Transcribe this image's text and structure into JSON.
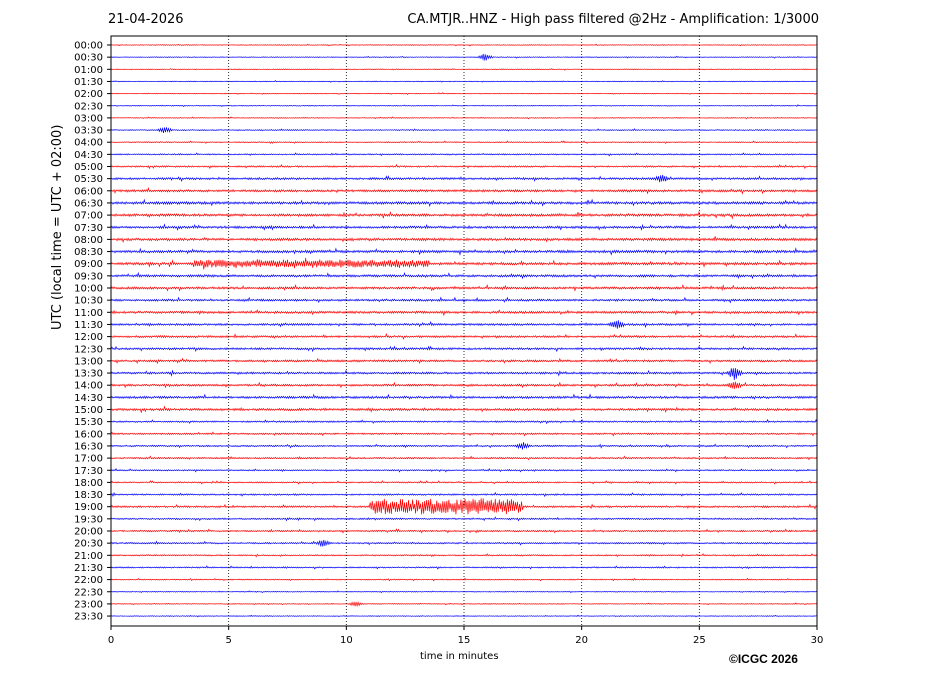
{
  "header": {
    "date": "21-04-2026",
    "title": "CA.MTJR..HNZ - High pass filtered @2Hz - Amplification: 1/3000"
  },
  "footer": {
    "copyright": "©ICGC 2026"
  },
  "chart_data": {
    "type": "line",
    "title": "CA.MTJR..HNZ - High pass filtered @2Hz - Amplification: 1/3000",
    "xlabel": "time in minutes",
    "ylabel": "UTC (local time = UTC + 02:00)",
    "xlim": [
      0,
      30
    ],
    "x_ticks": [
      0,
      5,
      10,
      15,
      20,
      25,
      30
    ],
    "x_gridlines": "dotted vertical at every 5 minutes",
    "trace_colors": [
      "#ff0000",
      "#0000ff"
    ],
    "row_labels": [
      "00:00",
      "00:30",
      "01:00",
      "01:30",
      "02:00",
      "02:30",
      "03:00",
      "03:30",
      "04:00",
      "04:30",
      "05:00",
      "05:30",
      "06:00",
      "06:30",
      "07:00",
      "07:30",
      "08:00",
      "08:30",
      "09:00",
      "09:30",
      "10:00",
      "10:30",
      "11:00",
      "11:30",
      "12:00",
      "12:30",
      "13:00",
      "13:30",
      "14:00",
      "14:30",
      "15:00",
      "15:30",
      "16:00",
      "16:30",
      "17:00",
      "17:30",
      "18:00",
      "18:30",
      "19:00",
      "19:30",
      "20:00",
      "20:30",
      "21:00",
      "21:30",
      "22:00",
      "22:30",
      "23:00",
      "23:30"
    ],
    "noise_level": [
      0.3,
      0.3,
      0.3,
      0.3,
      0.3,
      0.3,
      0.3,
      0.4,
      0.4,
      0.5,
      0.6,
      0.8,
      0.9,
      1.0,
      1.0,
      0.9,
      1.0,
      1.0,
      1.0,
      0.9,
      0.9,
      0.8,
      0.9,
      0.8,
      0.8,
      0.8,
      0.8,
      0.8,
      0.8,
      0.9,
      0.9,
      0.6,
      0.6,
      0.6,
      0.6,
      0.5,
      0.5,
      0.6,
      0.7,
      0.6,
      0.6,
      0.6,
      0.5,
      0.5,
      0.4,
      0.3,
      0.3,
      0.3
    ],
    "events": [
      {
        "row": 1,
        "minute": 15.9,
        "amplitude": 3
      },
      {
        "row": 7,
        "minute": 2.3,
        "amplitude": 3
      },
      {
        "row": 11,
        "minute": 23.4,
        "amplitude": 3
      },
      {
        "row": 18,
        "minute": 3.5,
        "minute_end": 13.5,
        "amplitude": 2.5
      },
      {
        "row": 23,
        "minute": 21.5,
        "amplitude": 4
      },
      {
        "row": 27,
        "minute": 26.5,
        "amplitude": 6
      },
      {
        "row": 28,
        "minute": 26.5,
        "amplitude": 4
      },
      {
        "row": 33,
        "minute": 17.5,
        "amplitude": 3
      },
      {
        "row": 38,
        "minute": 11.0,
        "minute_end": 17.5,
        "amplitude": 6
      },
      {
        "row": 41,
        "minute": 9.0,
        "amplitude": 3
      },
      {
        "row": 46,
        "minute": 10.4,
        "amplitude": 2
      }
    ]
  }
}
